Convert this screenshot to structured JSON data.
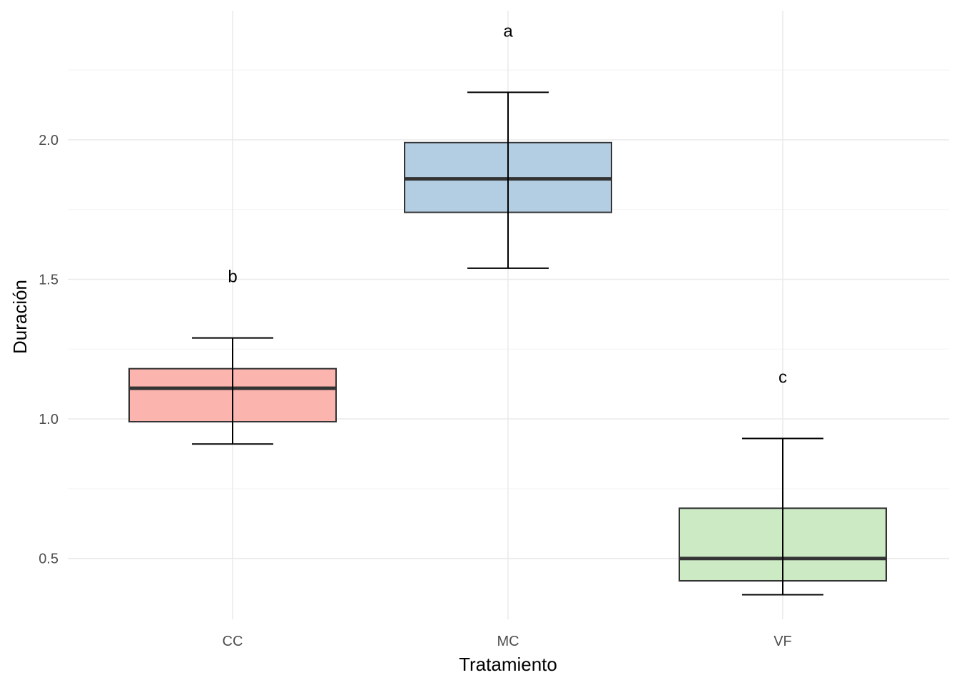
{
  "chart_data": {
    "type": "boxplot",
    "title": "",
    "xlabel": "Tratamiento",
    "ylabel": "Duración",
    "ylim": [
      0.28,
      2.48
    ],
    "yticks": [
      0.5,
      1.0,
      1.5,
      2.0
    ],
    "ytick_labels": [
      "0.5",
      "1.0",
      "1.5",
      "2.0"
    ],
    "minor_yticks": [
      0.75,
      1.25,
      1.75,
      2.25
    ],
    "grid": true,
    "legend": "none",
    "categories": [
      "CC",
      "MC",
      "VF"
    ],
    "boxes": [
      {
        "category": "CC",
        "whisker_low": 0.91,
        "q1": 0.99,
        "median": 1.11,
        "q3": 1.18,
        "whisker_high": 1.29,
        "letter": "b",
        "letter_y": 1.51,
        "fill": "#FBB4AE"
      },
      {
        "category": "MC",
        "whisker_low": 1.54,
        "q1": 1.74,
        "median": 1.86,
        "q3": 1.99,
        "whisker_high": 2.17,
        "letter": "a",
        "letter_y": 2.39,
        "fill": "#B3CDE3"
      },
      {
        "category": "VF",
        "whisker_low": 0.37,
        "q1": 0.42,
        "median": 0.5,
        "q3": 0.68,
        "whisker_high": 0.93,
        "letter": "c",
        "letter_y": 1.15,
        "fill": "#CCEBC5"
      }
    ],
    "colors": {
      "box_outline": "#333333",
      "median_line": "#333333",
      "whisker": "#000000",
      "grid_major": "#EBEBEB",
      "grid_minor": "#F5F5F5"
    }
  }
}
